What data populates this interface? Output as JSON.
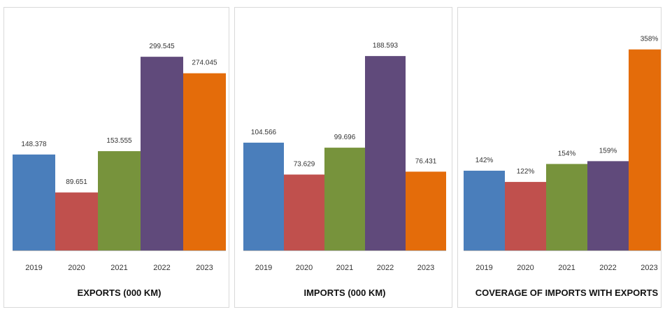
{
  "colors": [
    "#4a7ebb",
    "#c0504d",
    "#77933c",
    "#604a7b",
    "#e46c0a"
  ],
  "chart_data": [
    {
      "type": "bar",
      "title": "EXPORTS (000 KM)",
      "categories": [
        "2019",
        "2020",
        "2021",
        "2022",
        "2023"
      ],
      "values": [
        148378,
        89651,
        153555,
        299545,
        274045
      ],
      "value_labels": [
        "148.378",
        "89.651",
        "153.555",
        "299.545",
        "274.045"
      ],
      "ylim": [
        0,
        330000
      ]
    },
    {
      "type": "bar",
      "title": "IMPORTS (000 KM)",
      "categories": [
        "2019",
        "2020",
        "2021",
        "2022",
        "2023"
      ],
      "values": [
        104566,
        73629,
        99696,
        188593,
        76431
      ],
      "value_labels": [
        "104.566",
        "73.629",
        "99.696",
        "188.593",
        "76.431"
      ],
      "ylim": [
        0,
        207000
      ]
    },
    {
      "type": "bar",
      "title": "COVERAGE OF IMPORTS WITH EXPORTS",
      "categories": [
        "2019",
        "2020",
        "2021",
        "2022",
        "2023"
      ],
      "values": [
        142,
        122,
        154,
        159,
        358
      ],
      "value_labels": [
        "142%",
        "122%",
        "154%",
        "159%",
        "358%"
      ],
      "ylim": [
        0,
        380
      ]
    }
  ]
}
